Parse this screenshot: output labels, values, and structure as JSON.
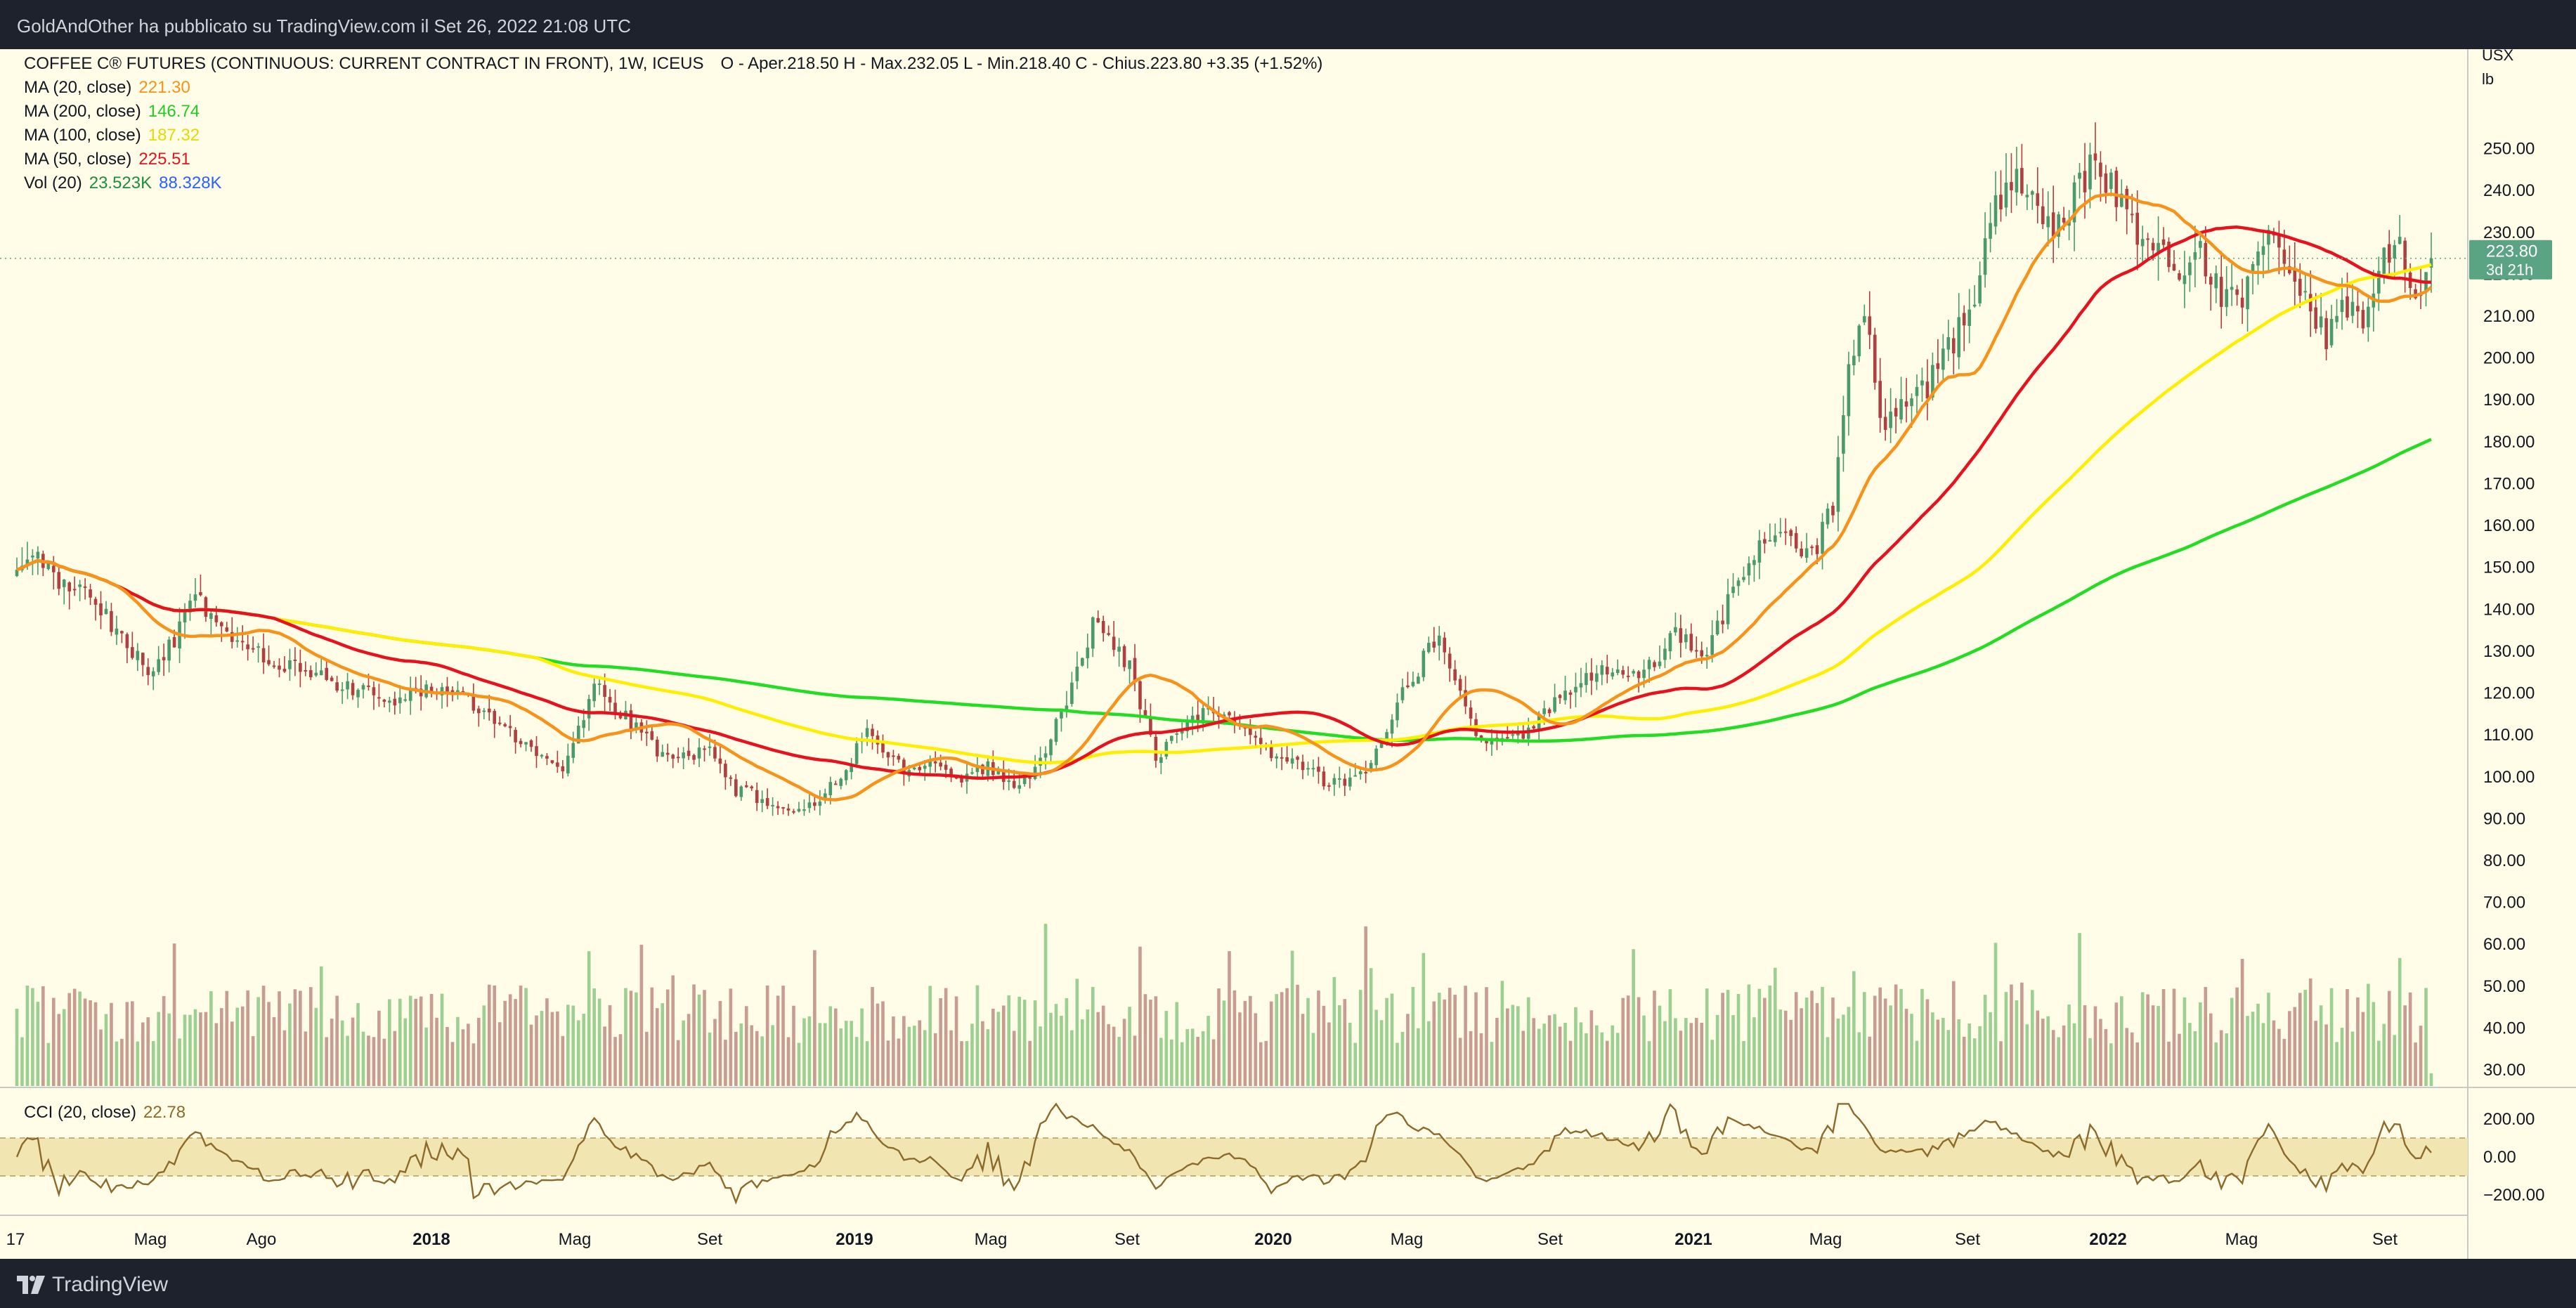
{
  "header": {
    "publisher_text": "GoldAndOther ha pubblicato su TradingView.com il Set 26, 2022 21:08 UTC"
  },
  "footer": {
    "brand": "TradingView",
    "logo_icon": "tradingview-logo-icon"
  },
  "legend": {
    "symbol": "COFFEE C® FUTURES (CONTINUOUS: CURRENT CONTRACT IN FRONT), 1W, ICEUS",
    "ohlc": "O - Aper.218.50  H - Max.232.05  L - Min.218.40  C - Chius.223.80  +3.35 (+1.52%)",
    "ma20": {
      "label": "MA (20, close)",
      "value": "221.30"
    },
    "ma200": {
      "label": "MA (200, close)",
      "value": "146.74"
    },
    "ma100": {
      "label": "MA (100, close)",
      "value": "187.32"
    },
    "ma50": {
      "label": "MA (50, close)",
      "value": "225.51"
    },
    "vol": {
      "label": "Vol (20)",
      "value1": "23.523K",
      "value2": "88.328K"
    },
    "cci": {
      "label": "CCI (20, close)",
      "value": "22.78"
    }
  },
  "price_axis": {
    "unit_line1": "USX",
    "unit_line2": "lb",
    "ticks": [
      "250.00",
      "240.00",
      "230.00",
      "220.00",
      "210.00",
      "200.00",
      "190.00",
      "180.00",
      "170.00",
      "160.00",
      "150.00",
      "140.00",
      "130.00",
      "120.00",
      "110.00",
      "100.00",
      "90.00",
      "80.00",
      "70.00",
      "60.00",
      "50.00",
      "40.00",
      "30.00"
    ],
    "last_price_label": "223.80",
    "countdown_label": "3d 21h"
  },
  "cci_axis": {
    "ticks": [
      "200.00",
      "0.00",
      "−200.00"
    ]
  },
  "time_axis": {
    "labels": [
      "17",
      "Mag",
      "Ago",
      "2018",
      "Mag",
      "Set",
      "2019",
      "Mag",
      "Set",
      "2020",
      "Mag",
      "Set",
      "2021",
      "Mag",
      "Set",
      "2022",
      "Mag",
      "Set"
    ],
    "bold": [
      "2018",
      "2019",
      "2020",
      "2021",
      "2022"
    ]
  },
  "colors": {
    "background": "#fffde7",
    "up": "#4a9a6b",
    "down": "#b0403f",
    "vol_up": "#9ccf92",
    "vol_down": "#c99c91",
    "ma20": "#f7931a",
    "ma200": "#22dd22",
    "ma100": "#ffee00",
    "ma50": "#e8121f",
    "cci": "#8c6a2c",
    "cci_band": "#f1e6b2",
    "last_price_bg": "#5aa483"
  },
  "chart_data": {
    "type": "candlestick",
    "interval": "1W",
    "ylim": [
      28,
      262
    ],
    "x_start": "2017-01",
    "x_end": "2022-09-26",
    "price_anchors": [
      [
        0,
        149
      ],
      [
        4,
        154
      ],
      [
        9,
        145
      ],
      [
        13,
        143
      ],
      [
        17,
        138
      ],
      [
        22,
        130
      ],
      [
        26,
        125
      ],
      [
        30,
        133
      ],
      [
        34,
        143
      ],
      [
        38,
        135
      ],
      [
        44,
        131
      ],
      [
        50,
        127
      ],
      [
        56,
        125
      ],
      [
        62,
        122
      ],
      [
        66,
        121
      ],
      [
        72,
        118
      ],
      [
        78,
        120
      ],
      [
        82,
        121
      ],
      [
        88,
        116
      ],
      [
        94,
        110
      ],
      [
        100,
        104
      ],
      [
        104,
        101
      ],
      [
        110,
        122
      ],
      [
        116,
        114
      ],
      [
        122,
        106
      ],
      [
        126,
        104
      ],
      [
        132,
        106
      ],
      [
        137,
        97
      ],
      [
        142,
        95
      ],
      [
        147,
        93
      ],
      [
        152,
        94
      ],
      [
        157,
        100
      ],
      [
        162,
        111
      ],
      [
        165,
        106
      ],
      [
        170,
        100
      ],
      [
        175,
        103
      ],
      [
        180,
        100
      ],
      [
        185,
        102
      ],
      [
        190,
        97
      ],
      [
        195,
        104
      ],
      [
        200,
        119
      ],
      [
        205,
        136
      ],
      [
        208,
        132
      ],
      [
        212,
        126
      ],
      [
        217,
        105
      ],
      [
        222,
        112
      ],
      [
        228,
        117
      ],
      [
        232,
        114
      ],
      [
        238,
        107
      ],
      [
        242,
        104
      ],
      [
        246,
        102
      ],
      [
        250,
        98
      ],
      [
        255,
        99
      ],
      [
        260,
        108
      ],
      [
        264,
        120
      ],
      [
        268,
        128
      ],
      [
        271,
        135
      ],
      [
        274,
        122
      ],
      [
        278,
        110
      ],
      [
        282,
        107
      ],
      [
        286,
        110
      ],
      [
        292,
        116
      ],
      [
        298,
        123
      ],
      [
        304,
        126
      ],
      [
        310,
        125
      ],
      [
        316,
        134
      ],
      [
        322,
        129
      ],
      [
        328,
        148
      ],
      [
        334,
        157
      ],
      [
        338,
        158
      ],
      [
        342,
        152
      ],
      [
        346,
        165
      ],
      [
        349,
        200
      ],
      [
        352,
        210
      ],
      [
        356,
        182
      ],
      [
        360,
        190
      ],
      [
        364,
        193
      ],
      [
        368,
        202
      ],
      [
        372,
        211
      ],
      [
        376,
        232
      ],
      [
        380,
        243
      ],
      [
        384,
        236
      ],
      [
        388,
        229
      ],
      [
        392,
        238
      ],
      [
        396,
        248
      ],
      [
        400,
        238
      ],
      [
        404,
        230
      ],
      [
        408,
        225
      ],
      [
        412,
        222
      ],
      [
        416,
        226
      ],
      [
        420,
        214
      ],
      [
        424,
        213
      ],
      [
        428,
        228
      ],
      [
        432,
        225
      ],
      [
        436,
        215
      ],
      [
        440,
        204
      ],
      [
        443,
        214
      ],
      [
        447,
        209
      ],
      [
        451,
        224
      ],
      [
        454,
        228
      ],
      [
        457,
        214
      ],
      [
        460,
        223.8
      ]
    ],
    "volume_range": [
      0,
      90
    ],
    "cci_range": [
      -300,
      300
    ],
    "moving_averages": [
      {
        "name": "MA (20, close)",
        "value": 221.3
      },
      {
        "name": "MA (200, close)",
        "value": 146.74
      },
      {
        "name": "MA (100, close)",
        "value": 187.32
      },
      {
        "name": "MA (50, close)",
        "value": 225.51
      }
    ],
    "last_close": 223.8,
    "last_change": "+3.35 (+1.52%)"
  }
}
